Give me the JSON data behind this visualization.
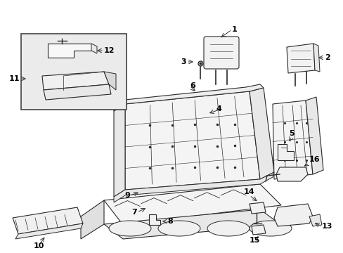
{
  "bg_color": "#ffffff",
  "line_color": "#2a2a2a",
  "label_color": "#000000",
  "box_bg": "#f0f0f0",
  "seat_fill": "#f4f4f4",
  "seat_shade": "#e8e8e8"
}
